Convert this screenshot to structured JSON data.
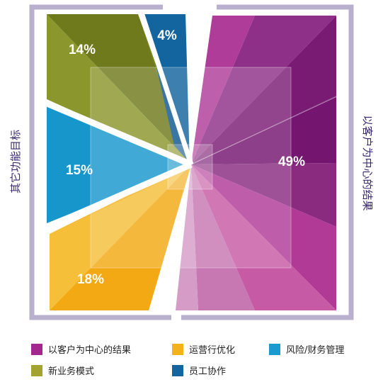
{
  "chart_data": {
    "type": "pie",
    "slices": [
      {
        "label": "以客户为中心的结果",
        "value": 49,
        "display": "49%",
        "color": "#8e2a82"
      },
      {
        "label": "运营行优化",
        "value": 18,
        "display": "18%",
        "color": "#f3b11a"
      },
      {
        "label": "风险/财务管理",
        "value": 15,
        "display": "15%",
        "color": "#1b9ad0"
      },
      {
        "label": "新业务模式",
        "value": 14,
        "display": "14%",
        "color": "#8d9a2a"
      },
      {
        "label": "员工协作",
        "value": 4,
        "display": "4%",
        "color": "#13659f"
      }
    ],
    "side_labels": {
      "left": "其它功能目标",
      "right": "以客户为中心的结果"
    },
    "legend": [
      {
        "label": "以客户为中心的结果",
        "color": "#a4268f"
      },
      {
        "label": "运营行优化",
        "color": "#f3b11a"
      },
      {
        "label": "风险/财务管理",
        "color": "#1b9ad0"
      },
      {
        "label": "新业务模式",
        "color": "#a3a330"
      },
      {
        "label": "员工协作",
        "color": "#13659f"
      }
    ],
    "frame_color": "#b9afcf"
  }
}
